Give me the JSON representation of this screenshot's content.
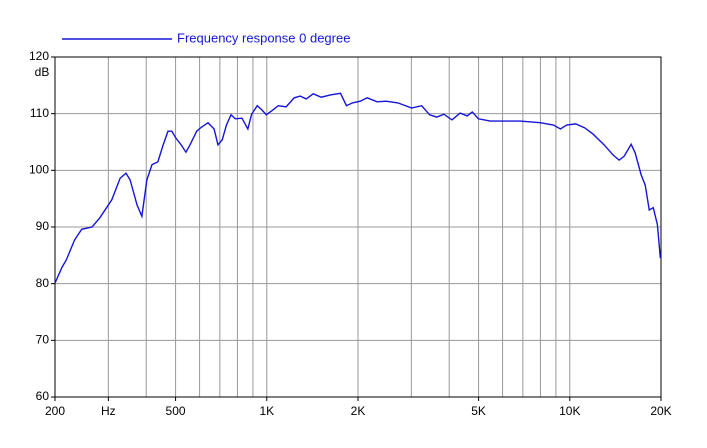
{
  "chart_data": {
    "type": "line",
    "y_label": "dB",
    "xscale": "log",
    "grid": true,
    "xlim": [
      200,
      20000
    ],
    "ylim": [
      60,
      120
    ],
    "xticks": [
      200,
      {
        "value": 300,
        "label": "Hz"
      },
      500,
      {
        "value": 1000,
        "label": "1K"
      },
      {
        "value": 2000,
        "label": "2K"
      },
      {
        "value": 5000,
        "label": "5K"
      },
      {
        "value": 10000,
        "label": "10K"
      },
      {
        "value": 20000,
        "label": "20K"
      }
    ],
    "x_minor_ticks": [
      400,
      600,
      700,
      800,
      900,
      3000,
      4000,
      6000,
      7000,
      8000,
      9000
    ],
    "yticks": [
      60,
      70,
      80,
      90,
      100,
      110,
      120
    ],
    "x": [
      200,
      211,
      218,
      232,
      245,
      265,
      281,
      308,
      328,
      343,
      354,
      373,
      387,
      402,
      418,
      437,
      455,
      472,
      486,
      501,
      520,
      541,
      558,
      587,
      608,
      640,
      670,
      690,
      713,
      736,
      762,
      787,
      828,
      866,
      891,
      930,
      966,
      996,
      1044,
      1091,
      1158,
      1232,
      1289,
      1349,
      1423,
      1513,
      1621,
      1751,
      1832,
      1917,
      2035,
      2144,
      2313,
      2474,
      2708,
      3007,
      3245,
      3447,
      3639,
      3843,
      4086,
      4344,
      4588,
      4766,
      4990,
      5467,
      5884,
      6856,
      7988,
      8830,
      9320,
      9760,
      10452,
      11200,
      11930,
      12980,
      13900,
      14550,
      15120,
      15940,
      16430,
      17200,
      17740,
      18290,
      18860,
      19460,
      19900
    ],
    "series": [
      {
        "name": "Frequency response 0 degree",
        "color": "#1515d9",
        "values": [
          80.1,
          82.9,
          84.2,
          87.7,
          89.6,
          90,
          91.6,
          94.8,
          98.6,
          99.5,
          98.3,
          93.9,
          91.9,
          98.3,
          101,
          101.5,
          104.5,
          106.9,
          106.9,
          105.7,
          104.6,
          103.2,
          104.5,
          106.9,
          107.6,
          108.4,
          107.3,
          104.5,
          105.4,
          108,
          109.8,
          109.1,
          109.2,
          107.3,
          109.9,
          111.4,
          110.6,
          109.8,
          110.6,
          111.4,
          111.2,
          112.8,
          113.1,
          112.6,
          113.5,
          112.9,
          113.3,
          113.6,
          111.4,
          111.9,
          112.2,
          112.8,
          112.1,
          112.2,
          111.9,
          111,
          111.4,
          109.8,
          109.4,
          109.9,
          108.9,
          110.1,
          109.6,
          110.3,
          109.1,
          108.7,
          108.7,
          108.7,
          108.4,
          108,
          107.3,
          108,
          108.2,
          107.5,
          106.4,
          104.5,
          102.7,
          101.8,
          102.5,
          104.6,
          103.1,
          99.2,
          97.4,
          93,
          93.4,
          90.4,
          84.5
        ]
      }
    ]
  }
}
